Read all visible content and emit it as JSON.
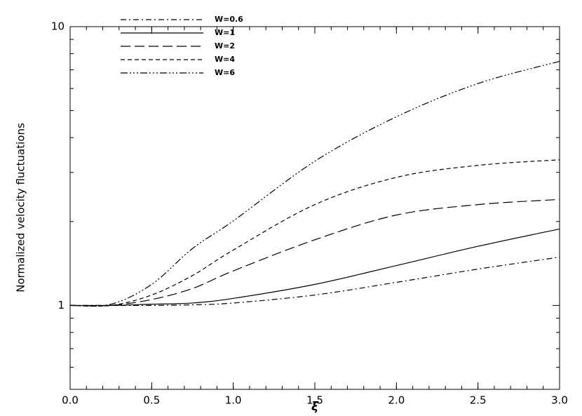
{
  "chart_data": {
    "type": "line",
    "x_label": "ξ",
    "y_label": "Normalized velocity fluctuations",
    "x": [
      0,
      0.25,
      0.5,
      0.75,
      1,
      1.5,
      2,
      2.5,
      3
    ],
    "series": [
      {
        "name": "W=0.6",
        "color": "#000000",
        "linestyle": "dashdot",
        "values": [
          1,
          1,
          1,
          1.005,
          1.02,
          1.09,
          1.21,
          1.35,
          1.49
        ]
      },
      {
        "name": "W=1",
        "color": "#000000",
        "linestyle": "solid",
        "values": [
          1,
          1,
          1.01,
          1.02,
          1.06,
          1.19,
          1.39,
          1.63,
          1.88
        ]
      },
      {
        "name": "W=2",
        "color": "#000000",
        "linestyle": "longdash",
        "values": [
          1,
          1,
          1.05,
          1.15,
          1.33,
          1.72,
          2.11,
          2.3,
          2.4
        ]
      },
      {
        "name": "W=4",
        "color": "#000000",
        "linestyle": "dash",
        "values": [
          1,
          1,
          1.09,
          1.28,
          1.58,
          2.3,
          2.88,
          3.18,
          3.33
        ]
      },
      {
        "name": "W=6",
        "color": "#000000",
        "linestyle": "dashdotdotdot",
        "values": [
          1,
          1.01,
          1.19,
          1.6,
          2.01,
          3.29,
          4.75,
          6.25,
          7.51
        ]
      }
    ],
    "xlim": [
      0,
      3
    ],
    "xticks": [
      {
        "value": 0,
        "label": "0.0"
      },
      {
        "value": 0.5,
        "label": "0.5"
      },
      {
        "value": 1,
        "label": "1.0"
      },
      {
        "value": 1.5,
        "label": "1.5"
      },
      {
        "value": 2,
        "label": "2.0"
      },
      {
        "value": 2.5,
        "label": "2.5"
      },
      {
        "value": 3,
        "label": "3.0"
      }
    ],
    "ylim": [
      0.5,
      10
    ],
    "yticks": [
      1,
      10
    ],
    "ylog": true,
    "legend": "top-left"
  }
}
